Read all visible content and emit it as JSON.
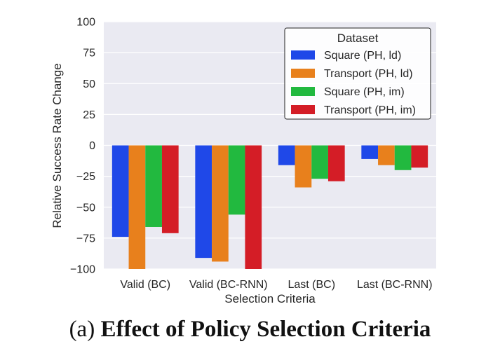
{
  "chart_data": {
    "type": "bar",
    "title": "",
    "xlabel": "Selection Criteria",
    "ylabel": "Relative Success Rate Change",
    "ylim": [
      -100,
      100
    ],
    "yticks": [
      100,
      75,
      50,
      25,
      0,
      -25,
      -50,
      -75,
      -100
    ],
    "ytick_labels": [
      "100",
      "75",
      "50",
      "25",
      "0",
      "−25",
      "−50",
      "−75",
      "−100"
    ],
    "categories": [
      "Valid (BC)",
      "Valid (BC-RNN)",
      "Last (BC)",
      "Last (BC-RNN)"
    ],
    "series": [
      {
        "name": "Square (PH, ld)",
        "color": "#1f48e8",
        "values": [
          -74,
          -91,
          -16,
          -11
        ]
      },
      {
        "name": "Transport (PH, ld)",
        "color": "#e8801c",
        "values": [
          -100,
          -94,
          -34,
          -16
        ]
      },
      {
        "name": "Square (PH, im)",
        "color": "#22b93f",
        "values": [
          -66,
          -56,
          -27,
          -20
        ]
      },
      {
        "name": "Transport (PH, im)",
        "color": "#d41d26",
        "values": [
          -71,
          -100,
          -29,
          -18
        ]
      }
    ],
    "legend": {
      "title": "Dataset",
      "location": "top-right"
    },
    "grid": true,
    "background_color": "#eaeaf2",
    "grid_color": "#ffffff"
  },
  "caption": {
    "prefix": "(a) ",
    "bold": "Effect of Policy Selection Criteria"
  }
}
